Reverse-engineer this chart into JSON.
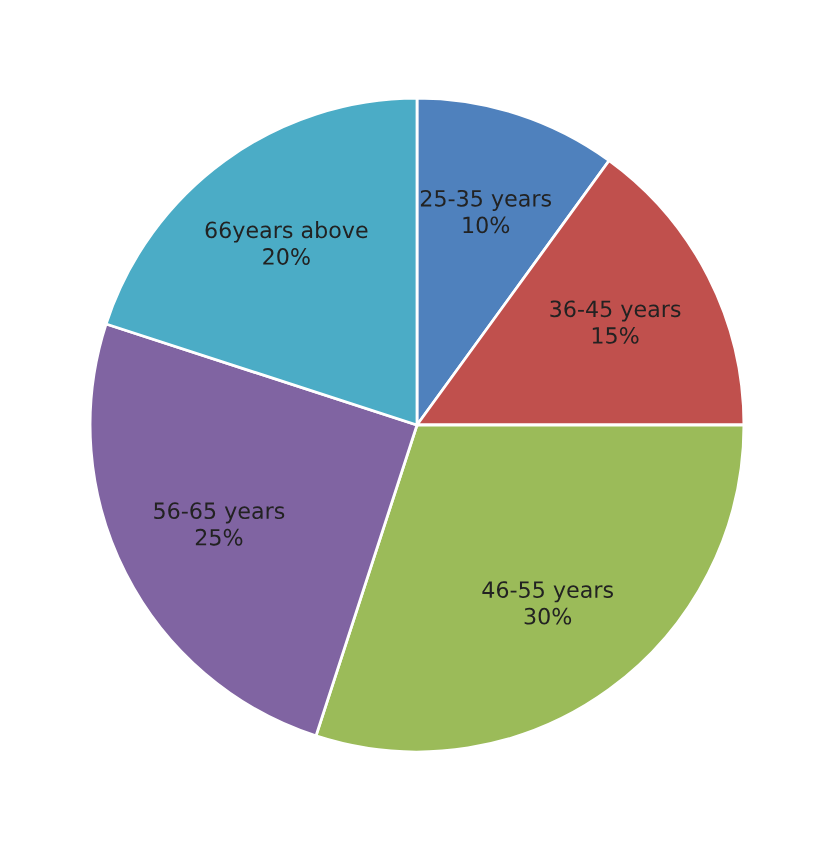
{
  "chart_data": {
    "type": "pie",
    "categories": [
      "25-35 years",
      "36-45 years",
      "46-55 years",
      "56-65 years",
      "66years above"
    ],
    "values": [
      10,
      15,
      30,
      25,
      20
    ],
    "value_labels": [
      "10%",
      "15%",
      "30%",
      "25%",
      "20%"
    ],
    "colors": [
      "#4f81bd",
      "#c0504d",
      "#9bbb59",
      "#8064a2",
      "#4bacc6"
    ]
  }
}
